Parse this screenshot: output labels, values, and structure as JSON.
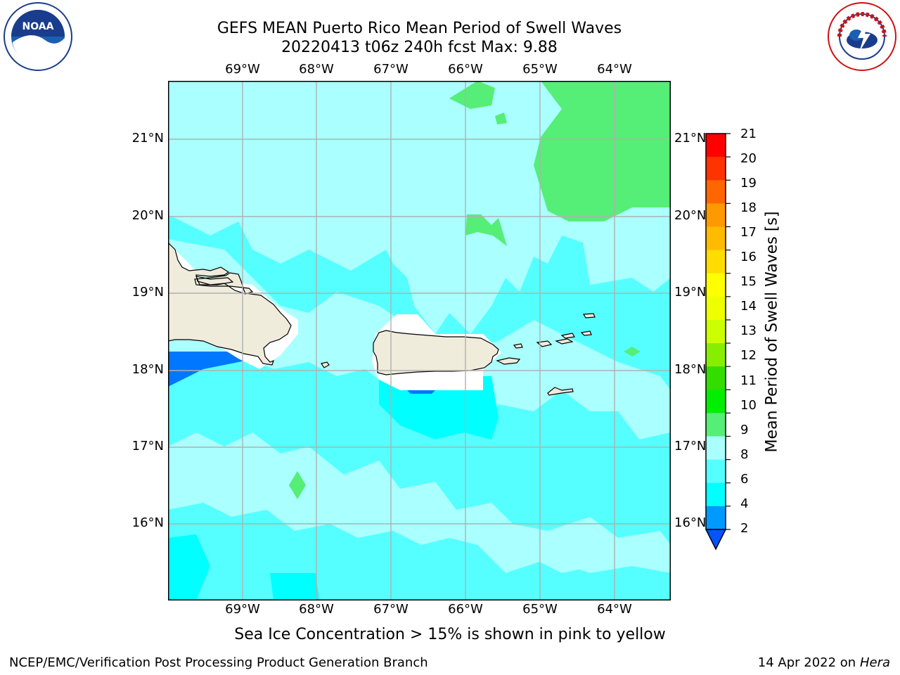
{
  "title_line1": "GEFS MEAN Puerto Rico Mean Period of Swell Waves",
  "title_line2": "20220413 t06z 240h fcst   Max: 9.88",
  "lon_labels": [
    "69°W",
    "68°W",
    "67°W",
    "66°W",
    "65°W",
    "64°W"
  ],
  "lat_labels": [
    "21°N",
    "20°N",
    "19°N",
    "18°N",
    "17°N",
    "16°N"
  ],
  "colorbar": {
    "title": "Mean Period of Swell Waves [s]",
    "ticks": [
      "21",
      "20",
      "19",
      "18",
      "17",
      "16",
      "15",
      "14",
      "13",
      "12",
      "11",
      "10",
      "9",
      "8",
      "6",
      "4",
      "2"
    ],
    "colors": [
      "#ff0000",
      "#ff3300",
      "#ff6600",
      "#ff9900",
      "#ffbb00",
      "#ffdd00",
      "#ffff00",
      "#eeff00",
      "#ccff00",
      "#88ee00",
      "#33dd00",
      "#00ee00",
      "#55ee77",
      "#aaffff",
      "#55ffff",
      "#00ffff",
      "#0099ff",
      "#0055ff"
    ]
  },
  "caption": "Sea Ice Concentration > 15% is shown in pink to yellow",
  "footer_left": "NCEP/EMC/Verification Post Processing Product Generation Branch",
  "footer_date": "14 Apr 2022 on ",
  "footer_host": "Hera",
  "logos": {
    "left": "noaa-logo",
    "right": "nws-logo",
    "left_text": "NOAA",
    "left_ring_text": "NATIONAL OCEANIC AND ATMOSPHERIC ADMINISTRATION · U.S. DEPARTMENT OF COMMERCE",
    "right_ring_text": "NATIONAL WEATHER SERVICE"
  },
  "colors": {
    "land": "#efecdc",
    "ocean_mid": "#55ffff",
    "ocean_light": "#aaffff",
    "ocean_dark": "#00ffff",
    "green": "#55ee77",
    "blue": "#0077ff",
    "grid": "#b0b0b0"
  }
}
